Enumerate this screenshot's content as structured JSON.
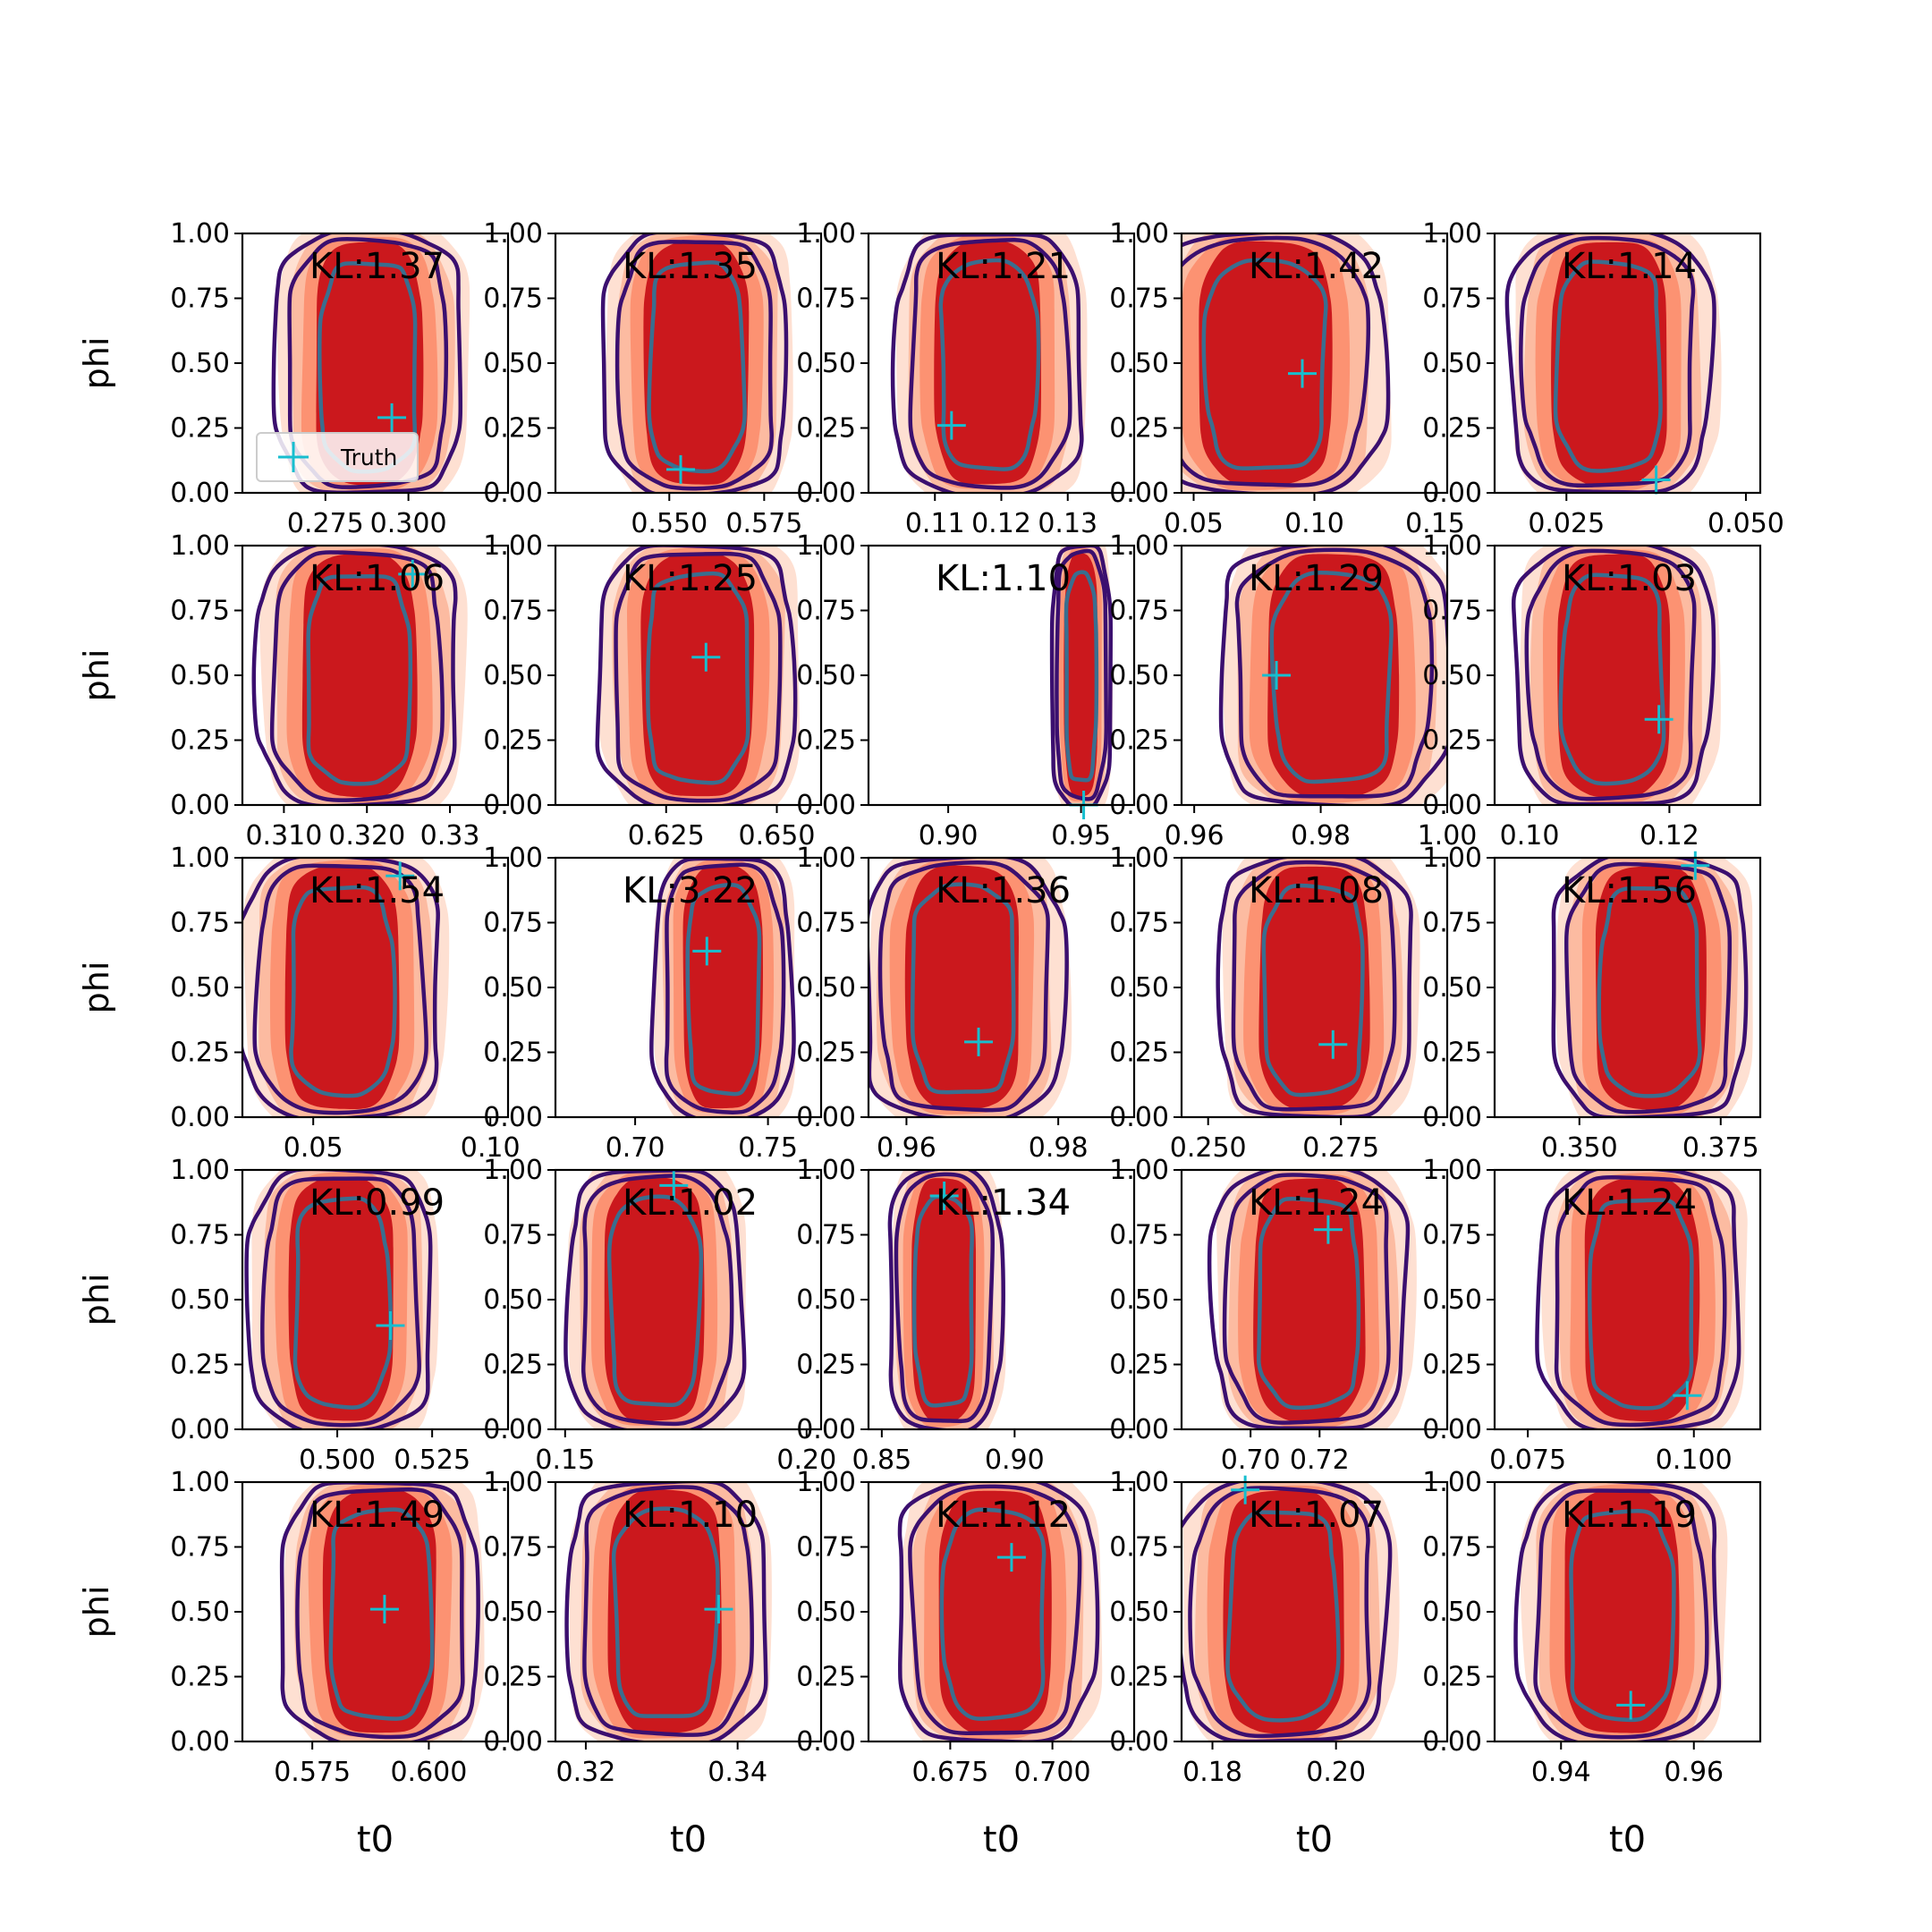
{
  "chart_data": {
    "type": "contour-grid",
    "rows": 5,
    "cols": 5,
    "xlabel": "t0",
    "ylabel": "phi",
    "ylim": [
      0,
      1
    ],
    "y_ticks": [
      "0.00",
      "0.25",
      "0.50",
      "0.75",
      "1.00"
    ],
    "legend": {
      "label": "Truth",
      "position": "lower-left of first panel"
    },
    "colors": {
      "truth_marker": "#17becf",
      "outer_contour": "#3b0f6f",
      "inner_contour": "#3a6e8f",
      "fill_light": "#fee0d2",
      "fill_mid": "#fc9272",
      "fill_core": "#cb181d"
    },
    "panels": [
      {
        "kl_label": "KL:1.37",
        "xlim": [
          0.25,
          0.33
        ],
        "x_ticks": [
          [
            "0.275",
            0.275
          ],
          [
            "0.300",
            0.3
          ]
        ],
        "center": 0.288,
        "width": 0.014,
        "truth": [
          0.295,
          0.29
        ]
      },
      {
        "kl_label": "KL:1.35",
        "xlim": [
          0.52,
          0.59
        ],
        "x_ticks": [
          [
            "0.550",
            0.55
          ],
          [
            "0.575",
            0.575
          ]
        ],
        "center": 0.557,
        "width": 0.012,
        "truth": [
          0.553,
          0.09
        ]
      },
      {
        "kl_label": "KL:1.21",
        "xlim": [
          0.1,
          0.14
        ],
        "x_ticks": [
          [
            "0.11",
            0.11
          ],
          [
            "0.12",
            0.12
          ],
          [
            "0.13",
            0.13
          ]
        ],
        "center": 0.118,
        "width": 0.007,
        "truth": [
          0.1125,
          0.26
        ]
      },
      {
        "kl_label": "KL:1.42",
        "xlim": [
          0.045,
          0.155
        ],
        "x_ticks": [
          [
            "0.05",
            0.05
          ],
          [
            "0.10",
            0.1
          ],
          [
            "0.15",
            0.15
          ]
        ],
        "center": 0.08,
        "width": 0.024,
        "truth": [
          0.095,
          0.46
        ]
      },
      {
        "kl_label": "KL:1.14",
        "xlim": [
          0.015,
          0.052
        ],
        "x_ticks": [
          [
            "0.025",
            0.025
          ],
          [
            "0.050",
            0.05
          ]
        ],
        "center": 0.031,
        "width": 0.007,
        "truth": [
          0.0375,
          0.05
        ]
      },
      {
        "kl_label": "KL:1.06",
        "xlim": [
          0.305,
          0.337
        ],
        "x_ticks": [
          [
            "0.310",
            0.31
          ],
          [
            "0.320",
            0.32
          ],
          [
            "0.33",
            0.33
          ]
        ],
        "center": 0.319,
        "width": 0.006,
        "truth": [
          0.3255,
          0.89
        ]
      },
      {
        "kl_label": "KL:1.25",
        "xlim": [
          0.6,
          0.66
        ],
        "x_ticks": [
          [
            "0.625",
            0.625
          ],
          [
            "0.650",
            0.65
          ]
        ],
        "center": 0.632,
        "width": 0.011,
        "truth": [
          0.634,
          0.57
        ]
      },
      {
        "kl_label": "KL:1.10",
        "xlim": [
          0.87,
          0.97
        ],
        "x_ticks": [
          [
            "0.90",
            0.9
          ],
          [
            "0.95",
            0.95
          ]
        ],
        "center": 0.95,
        "width": 0.0055,
        "truth": [
          0.951,
          0.0
        ]
      },
      {
        "kl_label": "KL:1.29",
        "xlim": [
          0.958,
          1.0
        ],
        "x_ticks": [
          [
            "0.96",
            0.96
          ],
          [
            "0.98",
            0.98
          ],
          [
            "1.00",
            1.0
          ]
        ],
        "center": 0.982,
        "width": 0.009,
        "truth": [
          0.973,
          0.5
        ]
      },
      {
        "kl_label": "KL:1.03",
        "xlim": [
          0.095,
          0.133
        ],
        "x_ticks": [
          [
            "0.10",
            0.1
          ],
          [
            "0.12",
            0.12
          ]
        ],
        "center": 0.112,
        "width": 0.007,
        "truth": [
          0.1185,
          0.33
        ]
      },
      {
        "kl_label": "KL:1.54",
        "xlim": [
          0.03,
          0.105
        ],
        "x_ticks": [
          [
            "0.05",
            0.05
          ],
          [
            "0.10",
            0.1
          ]
        ],
        "center": 0.058,
        "width": 0.014,
        "truth": [
          0.0745,
          0.93
        ]
      },
      {
        "kl_label": "KL:3.22",
        "xlim": [
          0.67,
          0.77
        ],
        "x_ticks": [
          [
            "0.70",
            0.7
          ],
          [
            "0.75",
            0.75
          ]
        ],
        "center": 0.733,
        "width": 0.013,
        "truth": [
          0.727,
          0.64
        ]
      },
      {
        "kl_label": "KL:1.36",
        "xlim": [
          0.955,
          0.99
        ],
        "x_ticks": [
          [
            "0.96",
            0.96
          ],
          [
            "0.98",
            0.98
          ]
        ],
        "center": 0.9675,
        "width": 0.0065,
        "truth": [
          0.9695,
          0.29
        ]
      },
      {
        "kl_label": "KL:1.08",
        "xlim": [
          0.245,
          0.295
        ],
        "x_ticks": [
          [
            "0.250",
            0.25
          ],
          [
            "0.275",
            0.275
          ]
        ],
        "center": 0.27,
        "width": 0.009,
        "truth": [
          0.2735,
          0.28
        ]
      },
      {
        "kl_label": "KL:1.56",
        "xlim": [
          0.335,
          0.382
        ],
        "x_ticks": [
          [
            "0.350",
            0.35
          ],
          [
            "0.375",
            0.375
          ]
        ],
        "center": 0.3625,
        "width": 0.0085,
        "truth": [
          0.3705,
          0.97
        ]
      },
      {
        "kl_label": "KL:0.99",
        "xlim": [
          0.475,
          0.545
        ],
        "x_ticks": [
          [
            "0.500",
            0.5
          ],
          [
            "0.525",
            0.525
          ]
        ],
        "center": 0.501,
        "width": 0.012,
        "truth": [
          0.514,
          0.4
        ]
      },
      {
        "kl_label": "KL:1.02",
        "xlim": [
          0.148,
          0.203
        ],
        "x_ticks": [
          [
            "0.15",
            0.15
          ],
          [
            "0.20",
            0.2
          ]
        ],
        "center": 0.1685,
        "width": 0.009,
        "truth": [
          0.1725,
          0.94
        ]
      },
      {
        "kl_label": "KL:1.34",
        "xlim": [
          0.845,
          0.945
        ],
        "x_ticks": [
          [
            "0.85",
            0.85
          ],
          [
            "0.90",
            0.9
          ]
        ],
        "center": 0.8735,
        "width": 0.0105,
        "truth": [
          0.8735,
          0.9
        ]
      },
      {
        "kl_label": "KL:1.24",
        "xlim": [
          0.68,
          0.757
        ],
        "x_ticks": [
          [
            "0.70",
            0.7
          ],
          [
            "0.72",
            0.72
          ]
        ],
        "center": 0.717,
        "width": 0.014,
        "truth": [
          0.7225,
          0.77
        ]
      },
      {
        "kl_label": "KL:1.24",
        "xlim": [
          0.07,
          0.11
        ],
        "x_ticks": [
          [
            "0.075",
            0.075
          ],
          [
            "0.100",
            0.1
          ]
        ],
        "center": 0.092,
        "width": 0.0075,
        "truth": [
          0.099,
          0.13
        ]
      },
      {
        "kl_label": "KL:1.49",
        "xlim": [
          0.56,
          0.617
        ],
        "x_ticks": [
          [
            "0.575",
            0.575
          ],
          [
            "0.600",
            0.6
          ]
        ],
        "center": 0.5895,
        "width": 0.0105,
        "truth": [
          0.5905,
          0.51
        ]
      },
      {
        "kl_label": "KL:1.10",
        "xlim": [
          0.316,
          0.351
        ],
        "x_ticks": [
          [
            "0.32",
            0.32
          ],
          [
            "0.34",
            0.34
          ]
        ],
        "center": 0.3305,
        "width": 0.0065,
        "truth": [
          0.3375,
          0.51
        ]
      },
      {
        "kl_label": "KL:1.12",
        "xlim": [
          0.655,
          0.72
        ],
        "x_ticks": [
          [
            "0.675",
            0.675
          ],
          [
            "0.700",
            0.7
          ]
        ],
        "center": 0.686,
        "width": 0.012,
        "truth": [
          0.69,
          0.71
        ]
      },
      {
        "kl_label": "KL:1.07",
        "xlim": [
          0.175,
          0.218
        ],
        "x_ticks": [
          [
            "0.18",
            0.18
          ],
          [
            "0.20",
            0.2
          ]
        ],
        "center": 0.1915,
        "width": 0.0085,
        "truth": [
          0.1853,
          0.97
        ]
      },
      {
        "kl_label": "KL:1.19",
        "xlim": [
          0.93,
          0.97
        ],
        "x_ticks": [
          [
            "0.94",
            0.94
          ],
          [
            "0.96",
            0.96
          ]
        ],
        "center": 0.949,
        "width": 0.0075,
        "truth": [
          0.9505,
          0.14
        ]
      }
    ]
  }
}
